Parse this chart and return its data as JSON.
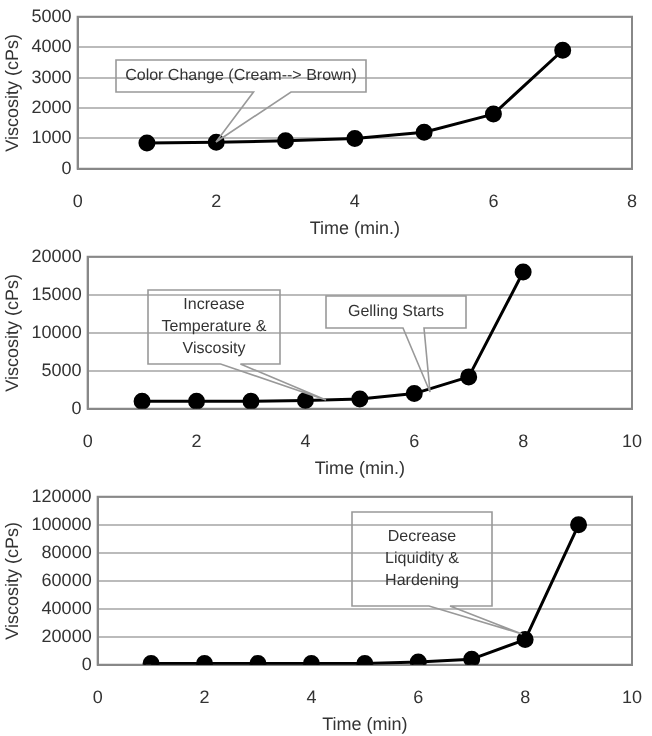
{
  "chart_data": [
    {
      "type": "line",
      "xlabel": "Time (min.)",
      "ylabel": "Viscosity (cPs)",
      "marker": "circle",
      "line_style": "solid",
      "grid": "y",
      "legend": false,
      "x": [
        1,
        2,
        3,
        4,
        5,
        6,
        7
      ],
      "series": [
        {
          "color": "#000000",
          "values": [
            850,
            870,
            920,
            1000,
            1200,
            1800,
            3900
          ]
        }
      ],
      "xlim": [
        0,
        8
      ],
      "xticks": [
        0,
        2,
        4,
        6,
        8
      ],
      "ylim": [
        0,
        5000
      ],
      "yticks": [
        0,
        1000,
        2000,
        3000,
        4000,
        5000
      ],
      "annotations": [
        "Color Change (Cream--> Brown)"
      ]
    },
    {
      "type": "line",
      "xlabel": "Time (min.)",
      "ylabel": "Viscosity (cPs)",
      "marker": "circle",
      "line_style": "solid",
      "grid": "y",
      "legend": false,
      "x": [
        1,
        2,
        3,
        4,
        5,
        6,
        7,
        8
      ],
      "series": [
        {
          "color": "#000000",
          "values": [
            1000,
            1000,
            1000,
            1100,
            1300,
            2000,
            4200,
            18000
          ]
        }
      ],
      "xlim": [
        0,
        10
      ],
      "xticks": [
        0,
        2,
        4,
        6,
        8,
        10
      ],
      "ylim": [
        0,
        20000
      ],
      "yticks": [
        0,
        5000,
        10000,
        15000,
        20000
      ],
      "annotations": [
        "Increase\nTemperature &\nViscosity",
        "Gelling Starts"
      ]
    },
    {
      "type": "line",
      "xlabel": "Time (min)",
      "ylabel": "Viscosity (cPs)",
      "marker": "circle",
      "line_style": "solid",
      "grid": "y",
      "legend": false,
      "x": [
        1,
        2,
        3,
        4,
        5,
        6,
        7,
        8,
        9
      ],
      "series": [
        {
          "color": "#000000",
          "values": [
            1000,
            1000,
            1000,
            1000,
            1000,
            2000,
            4000,
            18000,
            100000
          ]
        }
      ],
      "xlim": [
        0,
        10
      ],
      "xticks": [
        0,
        2,
        4,
        6,
        8,
        10
      ],
      "ylim": [
        0,
        120000
      ],
      "yticks": [
        0,
        20000,
        40000,
        60000,
        80000,
        100000,
        120000
      ],
      "annotations": [
        "Decrease\nLiquidity &\nHardening"
      ]
    }
  ]
}
